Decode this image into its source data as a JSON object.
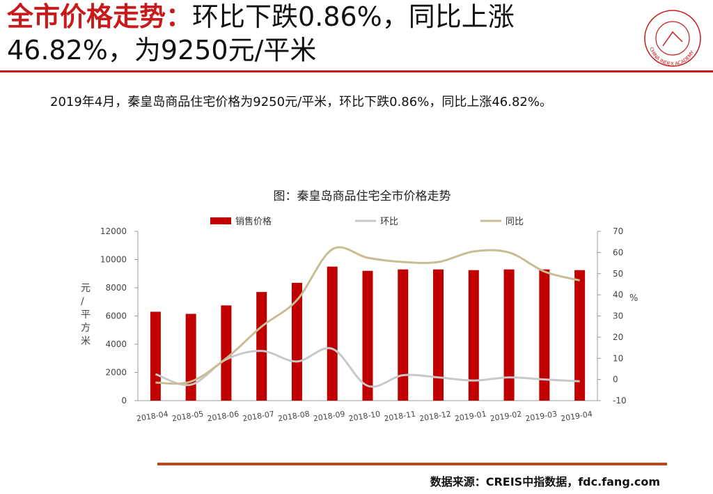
{
  "header": {
    "title_part1": "全市价格走势：",
    "title_part2": "环比下跌0.86%，同比上涨",
    "title_line2": "46.82%，为9250元/平米",
    "logo_text": "CHINA INDEX ACADEMY"
  },
  "description": "2019年4月，秦皇岛商品住宅价格为9250元/平米，环比下跌0.86%，同比上涨46.82%。",
  "footer": {
    "source": "数据来源：CREIS中指数据，fdc.fang.com"
  },
  "colors": {
    "accent": "#c81a1a",
    "bar": "#c00000",
    "mom_line": "#c8c8c8",
    "yoy_line": "#c8bd92",
    "footer_rule": "#b84a1d"
  },
  "chart_data": {
    "type": "bar",
    "title": "图：秦皇岛商品住宅全市价格走势",
    "categories": [
      "2018-04",
      "2018-05",
      "2018-06",
      "2018-07",
      "2018-08",
      "2018-09",
      "2018-10",
      "2018-11",
      "2018-12",
      "2019-01",
      "2019-02",
      "2019-03",
      "2019-04"
    ],
    "series": [
      {
        "name": "销售价格",
        "type": "bar",
        "axis": "left",
        "values": [
          6300,
          6150,
          6750,
          7700,
          8350,
          9500,
          9200,
          9300,
          9300,
          9250,
          9300,
          9300,
          9250
        ]
      },
      {
        "name": "环比",
        "type": "line",
        "axis": "right",
        "values": [
          2.5,
          -2.5,
          9.5,
          13.5,
          8.5,
          14.5,
          -3.0,
          2.0,
          1.0,
          -0.5,
          1.0,
          0.0,
          -0.86
        ]
      },
      {
        "name": "同比",
        "type": "line",
        "axis": "right",
        "values": [
          -1.5,
          -1.0,
          10.0,
          25.0,
          37.5,
          61.5,
          57.5,
          55.5,
          55.5,
          60.5,
          60.0,
          51.0,
          46.82
        ]
      }
    ],
    "ylabel_left": "元/平方米",
    "ylabel_right": "%",
    "ylim_left": [
      0,
      12000
    ],
    "yticks_left": [
      "0",
      "2000",
      "4000",
      "6000",
      "8000",
      "10000",
      "12000"
    ],
    "ylim_right": [
      -10,
      70
    ],
    "yticks_right": [
      "-10",
      "0",
      "10",
      "20",
      "30",
      "40",
      "50",
      "60",
      "70"
    ],
    "grid": false,
    "legend_position": "top"
  }
}
